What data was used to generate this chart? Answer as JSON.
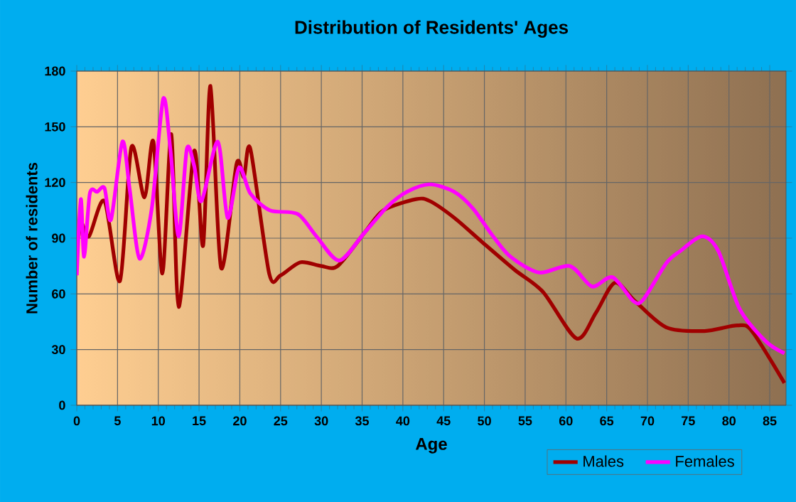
{
  "chart_data": {
    "type": "line",
    "title": "Distribution of Residents' Ages",
    "xlabel": "Age",
    "ylabel": "Number of residents",
    "xlim": [
      0,
      87
    ],
    "xticks": [
      0,
      5,
      10,
      15,
      20,
      25,
      30,
      35,
      40,
      45,
      50,
      55,
      60,
      65,
      70,
      75,
      80,
      85
    ],
    "ylim": [
      0,
      180
    ],
    "yticks": [
      0,
      30,
      60,
      90,
      120,
      150,
      180
    ],
    "grid": true,
    "legend": "bottom right",
    "marker": "none",
    "line_style": "solid",
    "series": [
      {
        "name": "Males",
        "color": "#a00000",
        "x": [
          0.2,
          0.6,
          1.5,
          3.4,
          5.3,
          6.7,
          8.3,
          9.4,
          10.5,
          11.6,
          12.5,
          14.4,
          15.5,
          16.4,
          17.7,
          19.6,
          20.5,
          21.3,
          23.6,
          25,
          27.4,
          30,
          32,
          35.3,
          37.6,
          41.6,
          43.3,
          46.3,
          49.7,
          53.7,
          57.2,
          61.3,
          63.7,
          66,
          68.5,
          72.3,
          77,
          81,
          82.8,
          86.8
        ],
        "values": [
          90,
          98,
          91,
          110,
          67,
          139,
          112,
          142,
          71,
          146,
          53,
          137,
          86,
          172,
          74,
          130,
          123,
          138,
          71,
          70,
          77,
          75,
          75,
          93,
          105,
          111,
          110,
          101,
          88,
          73,
          61,
          36,
          50,
          66,
          56,
          42,
          40,
          43,
          40,
          12
        ]
      },
      {
        "name": "Females",
        "color": "#ff00ff",
        "x": [
          0,
          0.5,
          0.9,
          1.6,
          2.5,
          3.4,
          4.2,
          5.6,
          6.5,
          7.7,
          9.2,
          10.6,
          11.5,
          12.5,
          13.5,
          14.4,
          15.3,
          17.3,
          18.5,
          19.9,
          21.3,
          23.7,
          27.1,
          29.4,
          32.2,
          35.3,
          38.1,
          40.5,
          43.3,
          46.3,
          48.6,
          50.9,
          53.2,
          56.7,
          60.5,
          63.2,
          65.7,
          68.3,
          69.5,
          72.3,
          74,
          76.7,
          78.7,
          81.3,
          84.5,
          86.8
        ],
        "values": [
          70,
          111,
          80,
          114,
          115,
          117,
          100,
          142,
          116,
          79,
          106,
          165,
          137,
          91,
          138,
          129,
          110,
          142,
          101,
          128,
          114,
          105,
          103,
          91,
          78,
          93,
          107,
          115,
          119,
          115,
          106,
          92,
          80,
          71.5,
          75,
          64,
          69,
          56,
          57,
          76.5,
          83,
          91,
          83,
          52,
          34.5,
          28
        ]
      }
    ]
  }
}
